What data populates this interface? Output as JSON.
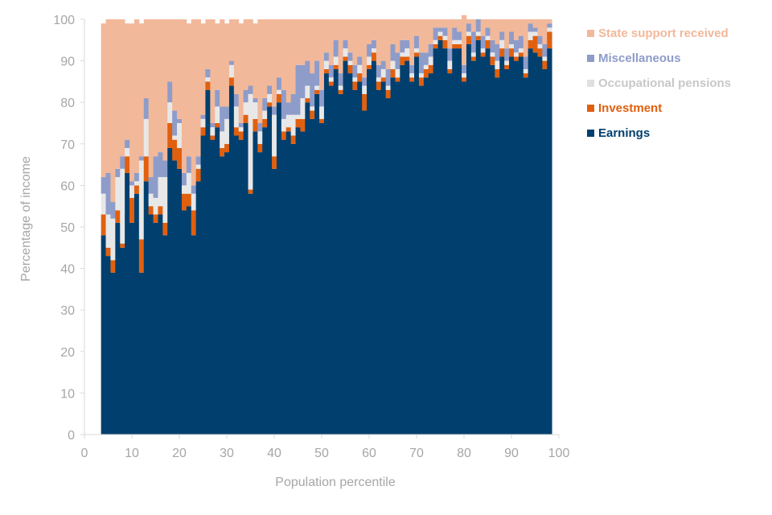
{
  "chart_data": {
    "type": "bar",
    "stacked": true,
    "xlabel": "Population percentile",
    "ylabel": "Percentage of income",
    "xlim": [
      0,
      100
    ],
    "ylim": [
      0,
      100
    ],
    "x_ticks": [
      0,
      10,
      20,
      30,
      40,
      50,
      60,
      70,
      80,
      90,
      100
    ],
    "y_ticks": [
      0,
      10,
      20,
      30,
      40,
      50,
      60,
      70,
      80,
      90,
      100
    ],
    "legend_position": "right",
    "categories": [
      4,
      5,
      6,
      7,
      8,
      9,
      10,
      11,
      12,
      13,
      14,
      15,
      16,
      17,
      18,
      19,
      20,
      21,
      22,
      23,
      24,
      25,
      26,
      27,
      28,
      29,
      30,
      31,
      32,
      33,
      34,
      35,
      36,
      37,
      38,
      39,
      40,
      41,
      42,
      43,
      44,
      45,
      46,
      47,
      48,
      49,
      50,
      51,
      52,
      53,
      54,
      55,
      56,
      57,
      58,
      59,
      60,
      61,
      62,
      63,
      64,
      65,
      66,
      67,
      68,
      69,
      70,
      71,
      72,
      73,
      74,
      75,
      76,
      77,
      78,
      79,
      80,
      81,
      82,
      83,
      84,
      85,
      86,
      87,
      88,
      89,
      90,
      91,
      92,
      93,
      94,
      95,
      96,
      97,
      98
    ],
    "series": [
      {
        "name": "Earnings",
        "color": "#003f6e",
        "values": [
          48,
          43,
          39,
          51,
          45,
          63,
          51,
          58,
          39,
          61,
          53,
          51,
          53,
          48,
          69,
          66,
          64,
          54,
          55,
          48,
          61,
          72,
          83,
          71,
          74,
          67,
          68,
          84,
          72,
          71,
          75,
          58,
          73,
          68,
          74,
          79,
          64,
          80,
          71,
          73,
          70,
          74,
          73,
          80,
          76,
          82,
          75,
          87,
          84,
          88,
          82,
          90,
          87,
          83,
          85,
          78,
          88,
          90,
          83,
          85,
          81,
          86,
          85,
          89,
          90,
          85,
          91,
          84,
          86,
          87,
          93,
          95,
          93,
          87,
          93,
          93,
          85,
          94,
          90,
          95,
          91,
          93,
          89,
          86,
          91,
          88,
          91,
          90,
          91,
          86,
          93,
          92,
          91,
          88,
          93
        ]
      },
      {
        "name": "Investment",
        "color": "#e0600f",
        "values": [
          5,
          2,
          3,
          3,
          1,
          4,
          6,
          2,
          8,
          6,
          2,
          2,
          2,
          3,
          6,
          5,
          5,
          4,
          3,
          6,
          3,
          2,
          2,
          1,
          1,
          2,
          2,
          2,
          2,
          2,
          2,
          1,
          3,
          2,
          2,
          1,
          3,
          2,
          2,
          1,
          2,
          2,
          3,
          1,
          2,
          1,
          1,
          1,
          1,
          1,
          1,
          1,
          2,
          2,
          2,
          4,
          1,
          2,
          2,
          1,
          2,
          2,
          1,
          2,
          1,
          1,
          1,
          2,
          2,
          2,
          1,
          1,
          2,
          1,
          1,
          1,
          1,
          2,
          1,
          1,
          1,
          2,
          2,
          2,
          2,
          1,
          2,
          1,
          1,
          1,
          2,
          4,
          2,
          2,
          4
        ]
      },
      {
        "name": "Occupational pensions",
        "color": "#e8e8e8",
        "values": [
          5,
          8,
          10,
          8,
          18,
          2,
          3,
          1,
          19,
          9,
          3,
          4,
          7,
          11,
          5,
          1,
          6,
          2,
          5,
          4,
          1,
          2,
          1,
          2,
          4,
          4,
          6,
          3,
          5,
          1,
          3,
          23,
          4,
          3,
          2,
          2,
          10,
          1,
          3,
          3,
          5,
          1,
          5,
          3,
          1,
          1,
          3,
          2,
          1,
          2,
          1,
          2,
          1,
          1,
          2,
          2,
          2,
          1,
          1,
          2,
          1,
          2,
          2,
          1,
          2,
          1,
          1,
          1,
          1,
          2,
          1,
          1,
          1,
          2,
          1,
          1,
          1,
          1,
          1,
          1,
          1,
          1,
          1,
          2,
          2,
          1,
          1,
          1,
          1,
          1,
          2,
          1,
          1,
          1,
          1
        ]
      },
      {
        "name": "Miscellaneous",
        "color": "#8e9cc9",
        "values": [
          4,
          10,
          4,
          2,
          3,
          2,
          1,
          2,
          1,
          5,
          4,
          10,
          6,
          4,
          5,
          6,
          1,
          3,
          4,
          2,
          2,
          1,
          2,
          1,
          4,
          6,
          3,
          1,
          3,
          1,
          3,
          2,
          1,
          2,
          3,
          2,
          2,
          3,
          7,
          3,
          5,
          12,
          8,
          6,
          8,
          6,
          4,
          2,
          3,
          4,
          3,
          2,
          2,
          3,
          2,
          2,
          3,
          2,
          3,
          2,
          4,
          4,
          4,
          3,
          2,
          2,
          3,
          5,
          3,
          3,
          3,
          1,
          2,
          3,
          3,
          2,
          2,
          2,
          5,
          3,
          3,
          2,
          3,
          4,
          2,
          3,
          3,
          3,
          3,
          3,
          2,
          1,
          2,
          3,
          1
        ]
      },
      {
        "name": "State support received",
        "color": "#f2b89a",
        "values": [
          37,
          37,
          44,
          36,
          33,
          28,
          38,
          37,
          32,
          19,
          38,
          33,
          32,
          34,
          15,
          22,
          24,
          37,
          32,
          40,
          33,
          22,
          12,
          25,
          16,
          21,
          20,
          10,
          18,
          24,
          17,
          16,
          18,
          25,
          19,
          16,
          21,
          14,
          17,
          20,
          18,
          11,
          11,
          10,
          13,
          10,
          17,
          8,
          11,
          5,
          13,
          5,
          8,
          11,
          9,
          14,
          6,
          5,
          11,
          10,
          12,
          6,
          8,
          5,
          5,
          11,
          4,
          8,
          8,
          6,
          2,
          2,
          2,
          7,
          2,
          3,
          12,
          1,
          3,
          0,
          4,
          2,
          5,
          6,
          3,
          7,
          3,
          5,
          4,
          9,
          1,
          2,
          4,
          6,
          1
        ]
      }
    ]
  },
  "legend": {
    "state": {
      "label": "State support received",
      "color": "#f2b89a"
    },
    "misc": {
      "label": "Miscellaneous",
      "color": "#8e9cc9"
    },
    "occ": {
      "label": "Occupational pensions",
      "color": "#e8e8e8"
    },
    "inv": {
      "label": "Investment",
      "color": "#e0600f"
    },
    "earn": {
      "label": "Earnings",
      "color": "#003f6e"
    }
  }
}
